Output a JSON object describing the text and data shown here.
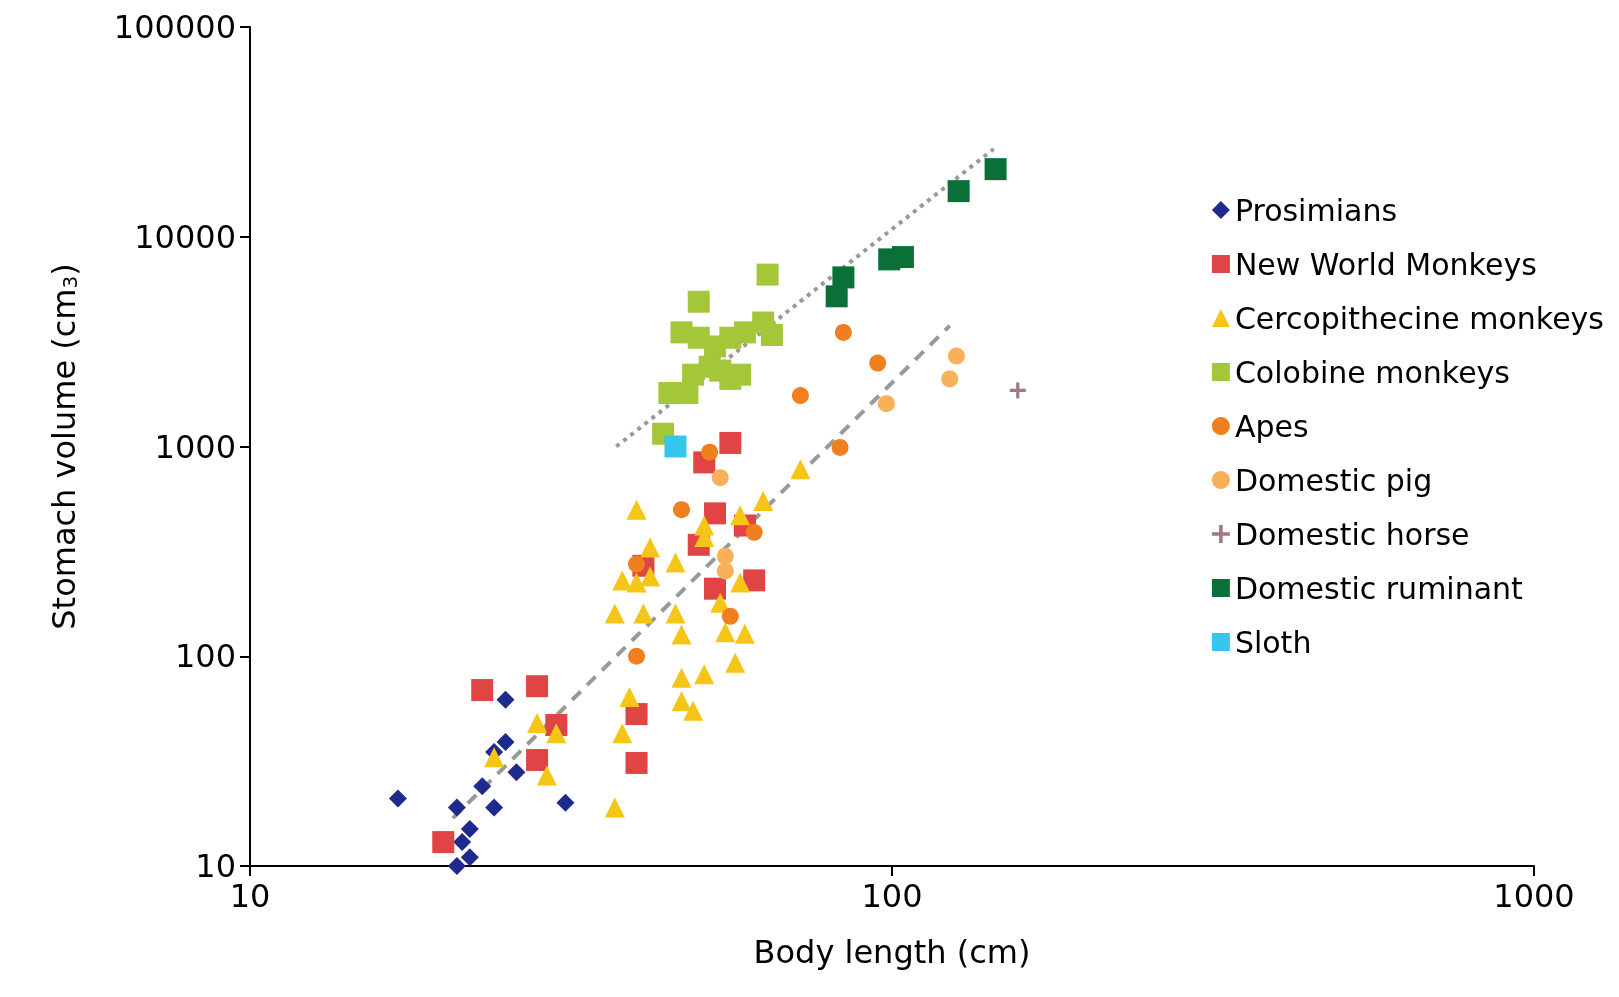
{
  "chart_data": {
    "type": "scatter",
    "xlabel": "Body length (cm)",
    "ylabel": "Stomach volume (cm$_{3}$)",
    "log": "xy",
    "xlim": [
      10,
      1000
    ],
    "xticks": [
      10,
      100,
      1000
    ],
    "ylim": [
      10,
      100000
    ],
    "yticks": [
      10,
      100,
      1000,
      10000,
      100000
    ],
    "grid": false,
    "legend": "right",
    "series": [
      {
        "name": "Prosimians",
        "color": "#1f2a8e",
        "marker": "diamond",
        "x": [
          17,
          21,
          21,
          21.4,
          22,
          22,
          23,
          24,
          24,
          25,
          25,
          26,
          31
        ],
        "values": [
          21,
          19,
          10,
          13,
          15,
          11,
          24,
          19,
          35,
          39,
          62,
          28,
          20
        ]
      },
      {
        "name": "New World Monkeys",
        "color": "#e04444",
        "marker": "square",
        "x": [
          20,
          23,
          28,
          28,
          30,
          40,
          40,
          41,
          50,
          53,
          51,
          56,
          53,
          59,
          61
        ],
        "values": [
          13,
          69,
          72,
          32,
          47,
          53,
          31,
          270,
          340,
          480,
          840,
          1040,
          210,
          420,
          230
        ]
      },
      {
        "name": "Cercopithecine monkeys",
        "color": "#f5c518",
        "marker": "triangle",
        "x": [
          24,
          28,
          30,
          29,
          37,
          38,
          39,
          37,
          38,
          40,
          40,
          41,
          42,
          42,
          46,
          46,
          47,
          47,
          47,
          49,
          51,
          51,
          51,
          54,
          55,
          57,
          58,
          58,
          59,
          63,
          72
        ],
        "values": [
          33,
          48,
          43,
          27,
          19,
          43,
          64,
          160,
          230,
          500,
          225,
          160,
          330,
          240,
          280,
          160,
          127,
          79,
          61,
          55,
          82,
          370,
          420,
          180,
          130,
          93,
          470,
          225,
          128,
          550,
          780
        ]
      },
      {
        "name": "Colobine monkeys",
        "color": "#a4c639",
        "marker": "square",
        "x": [
          44,
          45,
          48,
          49,
          47,
          50,
          50,
          52,
          53,
          54,
          56,
          56,
          58,
          59,
          63,
          65,
          64
        ],
        "values": [
          1150,
          1800,
          1800,
          2200,
          3500,
          4900,
          3300,
          2400,
          3000,
          2300,
          2100,
          3300,
          2200,
          3500,
          3900,
          3400,
          6600
        ]
      },
      {
        "name": "Apes",
        "color": "#f07f1f",
        "marker": "circle",
        "x": [
          40,
          40,
          47,
          52,
          56,
          61,
          72,
          83,
          84,
          95
        ],
        "values": [
          275,
          100,
          500,
          940,
          155,
          390,
          1750,
          990,
          3500,
          2500
        ]
      },
      {
        "name": "Domestic pig",
        "color": "#f8b05a",
        "marker": "circle",
        "x": [
          54,
          55,
          55,
          98,
          123,
          126
        ],
        "values": [
          710,
          300,
          255,
          1600,
          2100,
          2700
        ]
      },
      {
        "name": "Domestic horse",
        "color": "#a07a80",
        "marker": "cross",
        "x": [
          157
        ],
        "values": [
          1850
        ]
      },
      {
        "name": "Domestic ruminant",
        "color": "#0a7038",
        "marker": "square",
        "x": [
          82,
          84,
          99,
          104,
          127,
          145
        ],
        "values": [
          5200,
          6400,
          7800,
          8000,
          16500,
          21000
        ]
      },
      {
        "name": "Sloth",
        "color": "#36c6ec",
        "marker": "square",
        "x": [
          46
        ],
        "values": [
          1000
        ]
      },
      {
        "type": "line",
        "color": "#999999",
        "line_style": "dotted",
        "marker": "none",
        "x": [
          37.2,
          144
        ],
        "values": [
          1000,
          26200
        ]
      },
      {
        "type": "line",
        "color": "#999999",
        "line_style": "dashed",
        "marker": "none",
        "x": [
          20.7,
          123
        ],
        "values": [
          16.9,
          3770
        ]
      }
    ]
  }
}
